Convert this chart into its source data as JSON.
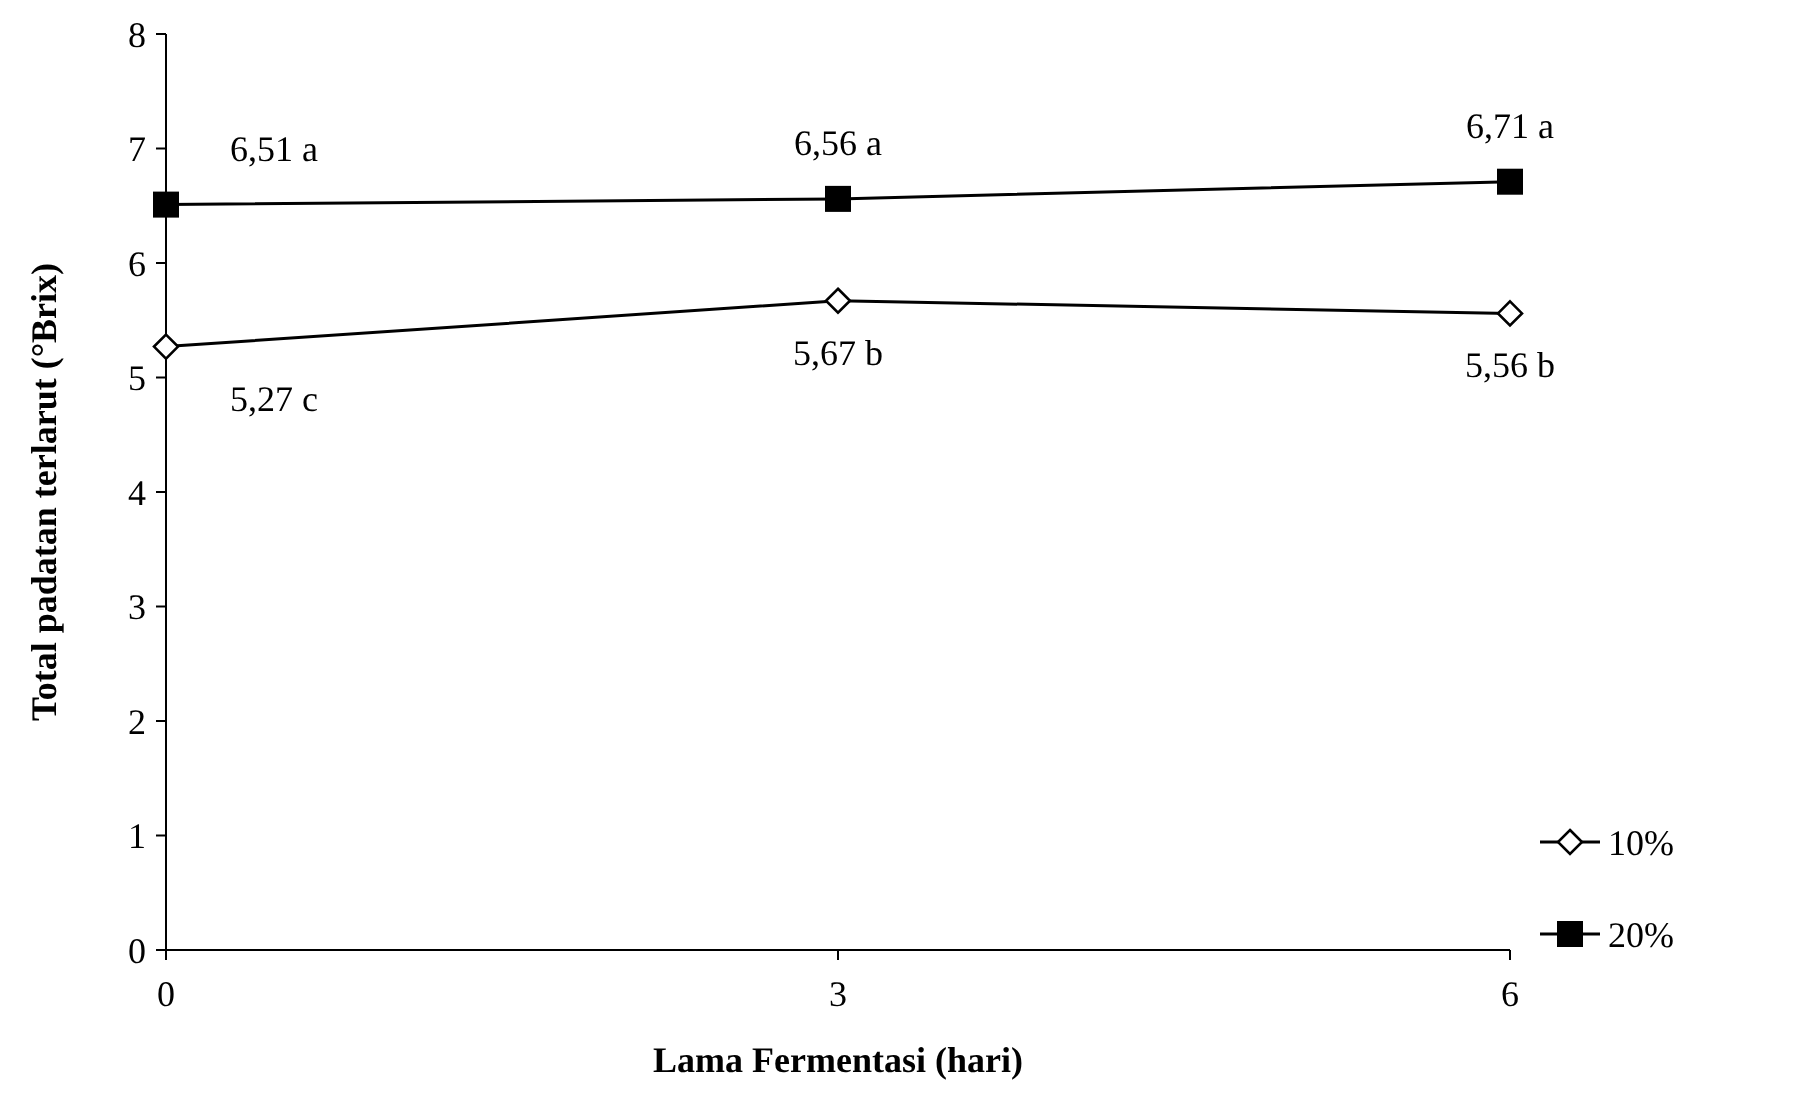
{
  "chart_data": {
    "type": "line",
    "xlabel": "Lama Fermentasi (hari)",
    "ylabel": "Total padatan terlarut (°Brix)",
    "x": [
      0,
      3,
      6
    ],
    "xlim": [
      0,
      6
    ],
    "xticks": [
      0,
      3,
      6
    ],
    "ylim": [
      0,
      8
    ],
    "yticks": [
      0,
      1,
      2,
      3,
      4,
      5,
      6,
      7,
      8
    ],
    "grid": false,
    "legend": "right",
    "line_style": "solid",
    "series": [
      {
        "name": "10%",
        "color": "#000000",
        "marker": "diamond",
        "values": [
          5.27,
          5.67,
          5.56
        ],
        "value_labels": [
          "5,27 c",
          "5,67 b",
          "5,56 b"
        ]
      },
      {
        "name": "20%",
        "color": "#000000",
        "marker": "square",
        "values": [
          6.51,
          6.56,
          6.71
        ],
        "value_labels": [
          "6,51 a",
          "6,56 a",
          "6,71 a"
        ]
      }
    ]
  }
}
